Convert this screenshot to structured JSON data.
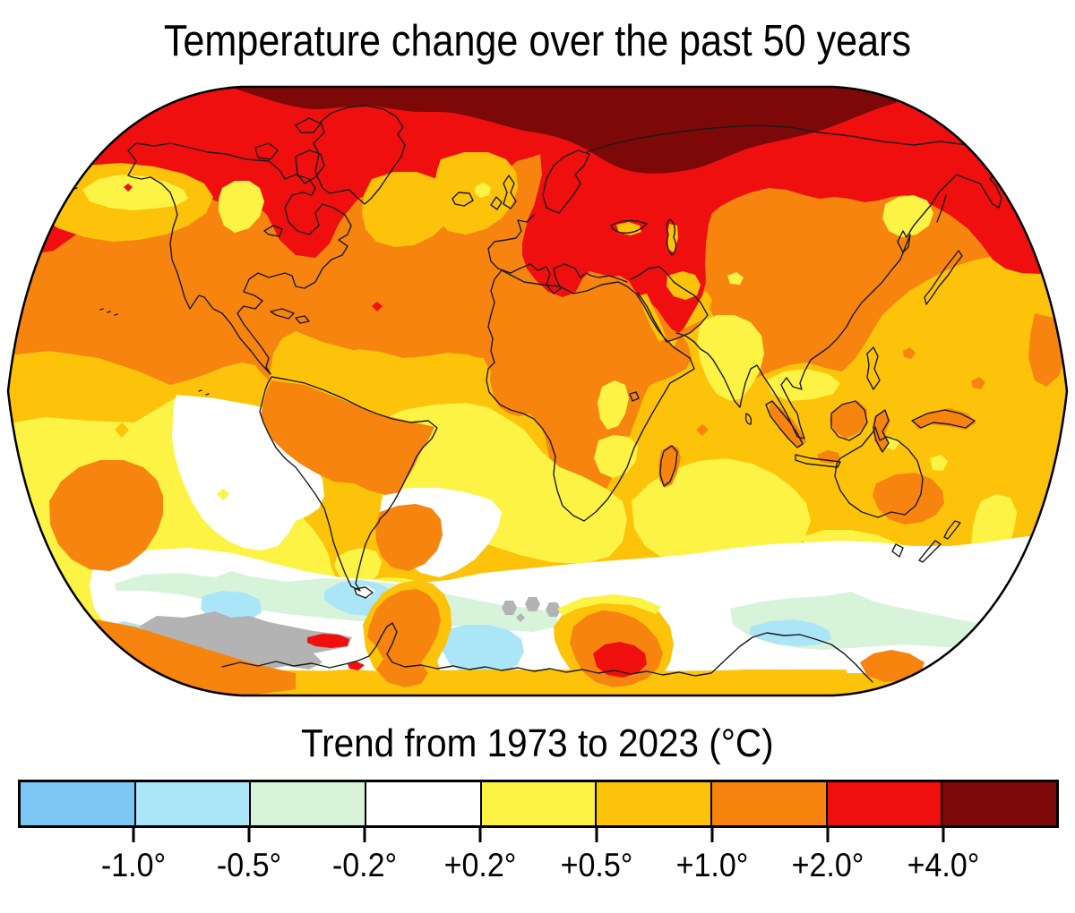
{
  "title": "Temperature change over the past 50 years",
  "legend": {
    "title": "Trend from 1973 to 2023 (°C)",
    "labels": [
      "-1.0°",
      "-0.5°",
      "-0.2°",
      "+0.2°",
      "+0.5°",
      "+1.0°",
      "+2.0°",
      "+4.0°"
    ],
    "colors": [
      "#7cc7f3",
      "#abe6f8",
      "#d7f3da",
      "#ffffff",
      "#fdf344",
      "#fcc30a",
      "#f7840e",
      "#ef0f0f",
      "#7d0808"
    ]
  },
  "map": {
    "projection": "Robinson",
    "palette": {
      "blue": "#7cc7f3",
      "light_blue": "#abe6f8",
      "pale_green": "#d7f3da",
      "white": "#ffffff",
      "yellow": "#fdf344",
      "amber": "#fcc30a",
      "orange": "#f7840e",
      "red": "#ef0f0f",
      "dark_red": "#7d0808",
      "gray_no_data": "#b3b3b3",
      "coastline": "#1a1a1a",
      "outline": "#000000"
    },
    "regions": [
      {
        "name": "arctic-cap",
        "trend": "+4.0 and above"
      },
      {
        "name": "arctic-band-europe-middle-east",
        "trend": "+2.0 to +4.0"
      },
      {
        "name": "northern-continents",
        "trend": "+1.0 to +2.0"
      },
      {
        "name": "mid-latitude-oceans",
        "trend": "+0.5 to +1.0"
      },
      {
        "name": "southern-oceans",
        "trend": "+0.2 to +0.5"
      },
      {
        "name": "southeast-pacific-southern-ocean",
        "trend": "-0.2 to +0.2"
      },
      {
        "name": "antarctic-coastal-waters",
        "trend": "-0.5 to -0.2"
      },
      {
        "name": "antarctic-patches",
        "trend": "-1.0 to -0.5"
      },
      {
        "name": "southern-ocean-no-data",
        "trend": "no data"
      }
    ]
  }
}
